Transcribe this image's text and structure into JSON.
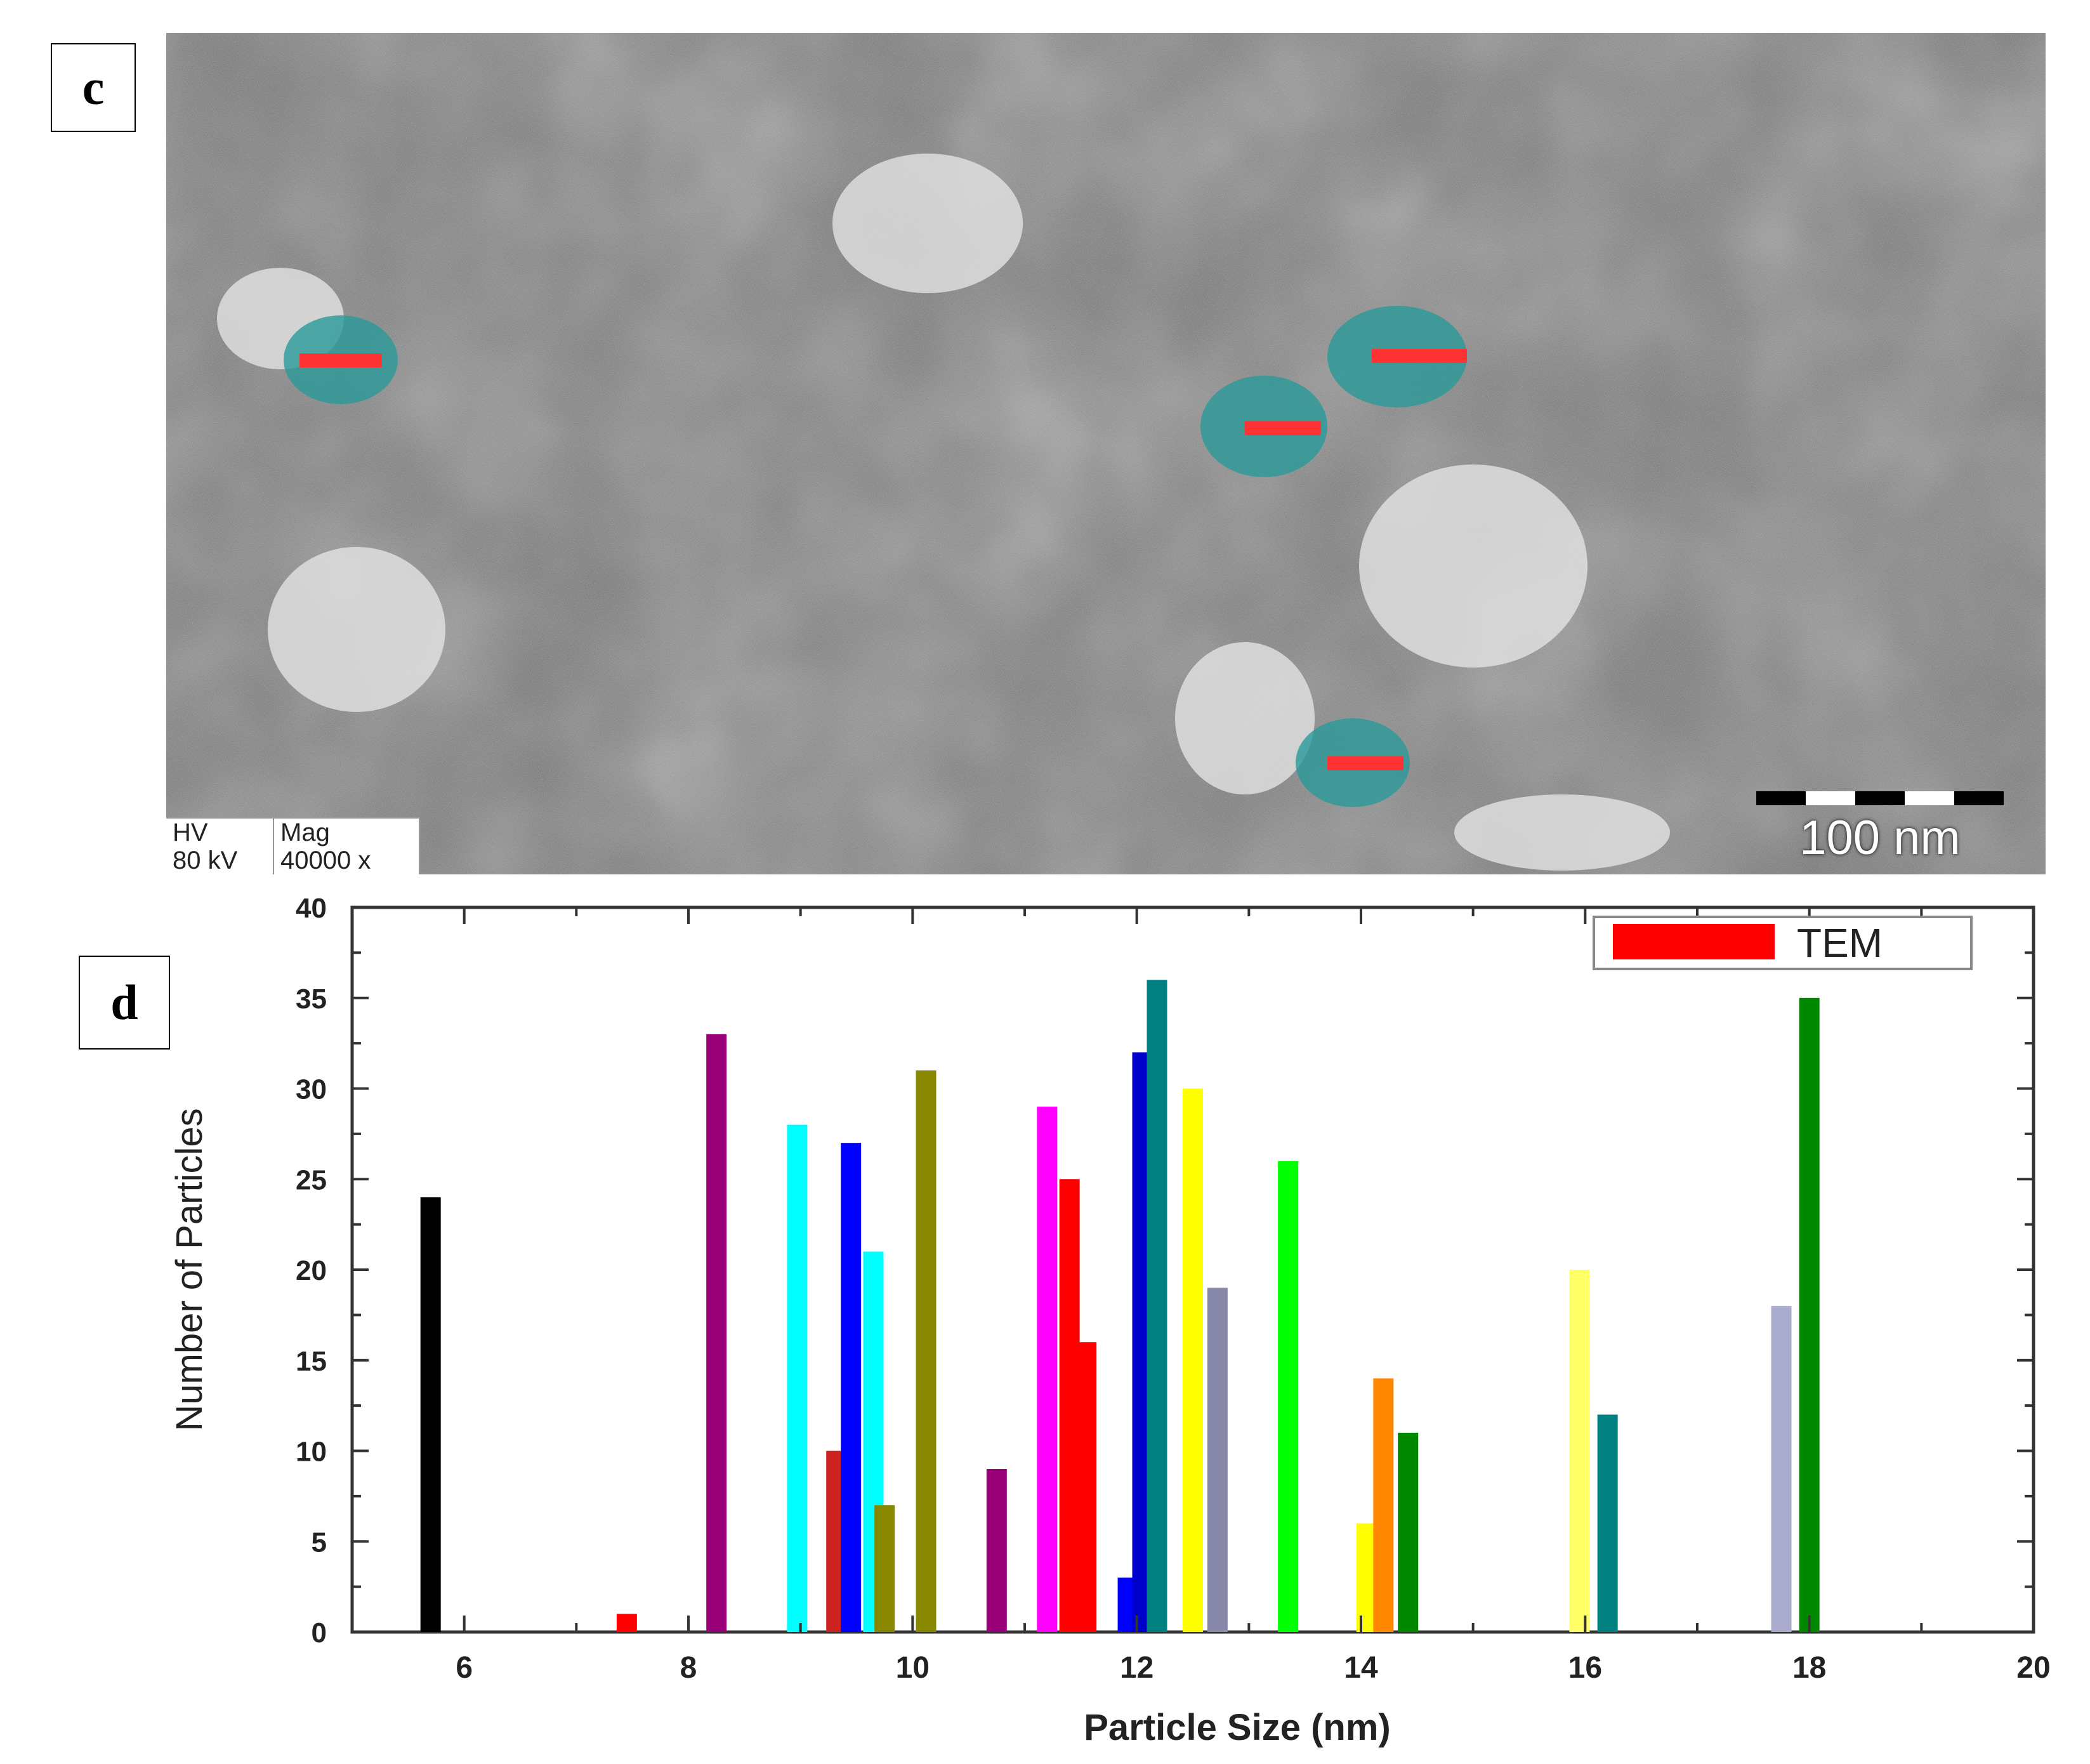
{
  "panels": {
    "c_label": "c",
    "d_label": "d"
  },
  "tem": {
    "hv_label": "HV",
    "hv_value": "80 kV",
    "mag_label": "Mag",
    "mag_value": "40000 x",
    "scale_label": "100 nm"
  },
  "chart_data": {
    "type": "bar",
    "xlabel": "Particle Size (nm)",
    "ylabel": "Number of Particles",
    "xlim": [
      5,
      20
    ],
    "ylim": [
      0,
      40
    ],
    "xticks": [
      6,
      8,
      10,
      12,
      14,
      16,
      18,
      20
    ],
    "yticks": [
      0,
      5,
      10,
      15,
      20,
      25,
      30,
      35,
      40
    ],
    "legend": {
      "label": "TEM",
      "color": "#ff0000",
      "position": "top-right"
    },
    "bars": [
      {
        "x": 5.7,
        "value": 24,
        "color": "#000000"
      },
      {
        "x": 7.45,
        "value": 1,
        "color": "#ff0000"
      },
      {
        "x": 8.25,
        "value": 33,
        "color": "#990077"
      },
      {
        "x": 8.97,
        "value": 28,
        "color": "#00ffff"
      },
      {
        "x": 9.32,
        "value": 10,
        "color": "#cc2222"
      },
      {
        "x": 9.45,
        "value": 27,
        "color": "#0000ff"
      },
      {
        "x": 9.65,
        "value": 21,
        "color": "#00ffff"
      },
      {
        "x": 9.75,
        "value": 7,
        "color": "#888800"
      },
      {
        "x": 10.12,
        "value": 31,
        "color": "#888800"
      },
      {
        "x": 10.75,
        "value": 9,
        "color": "#990077"
      },
      {
        "x": 11.2,
        "value": 29,
        "color": "#ff00ff"
      },
      {
        "x": 11.4,
        "value": 25,
        "color": "#ff0000"
      },
      {
        "x": 11.55,
        "value": 16,
        "color": "#ff0000"
      },
      {
        "x": 11.92,
        "value": 3,
        "color": "#0000ff"
      },
      {
        "x": 12.05,
        "value": 32,
        "color": "#0000cc"
      },
      {
        "x": 12.18,
        "value": 36,
        "color": "#008080"
      },
      {
        "x": 12.5,
        "value": 30,
        "color": "#ffff00"
      },
      {
        "x": 12.72,
        "value": 19,
        "color": "#8888aa"
      },
      {
        "x": 13.35,
        "value": 26,
        "color": "#00ff00"
      },
      {
        "x": 14.05,
        "value": 6,
        "color": "#ffff00"
      },
      {
        "x": 14.2,
        "value": 14,
        "color": "#ff8800"
      },
      {
        "x": 14.42,
        "value": 11,
        "color": "#008800"
      },
      {
        "x": 15.95,
        "value": 20,
        "color": "#ffff66"
      },
      {
        "x": 16.2,
        "value": 12,
        "color": "#008080"
      },
      {
        "x": 17.75,
        "value": 18,
        "color": "#aaaacc"
      },
      {
        "x": 18.0,
        "value": 35,
        "color": "#008800"
      }
    ]
  }
}
